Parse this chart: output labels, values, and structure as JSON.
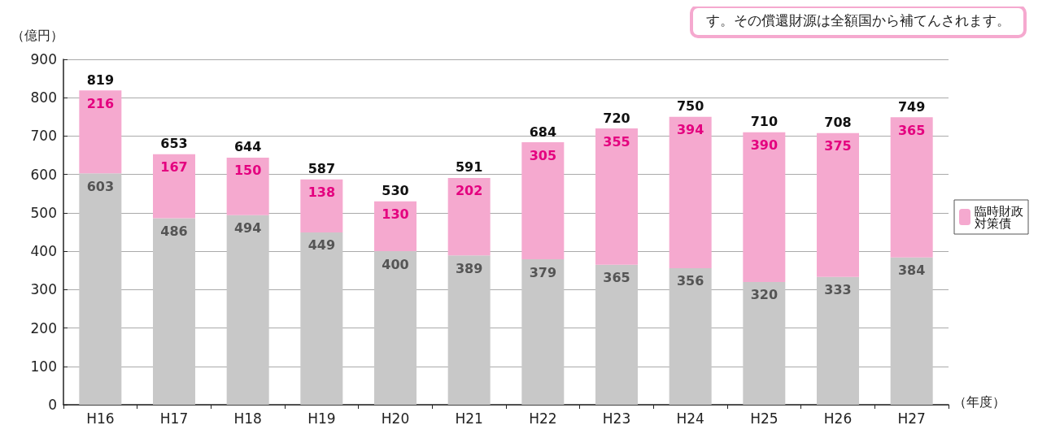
{
  "chart_data": {
    "type": "bar",
    "stacked": true,
    "ylabel": "（億円）",
    "xlabel": "（年度）",
    "annotations": [
      "す。その償還財源は全額国から補てんされます。"
    ],
    "categories": [
      "H16",
      "H17",
      "H18",
      "H19",
      "H20",
      "H21",
      "H22",
      "H23",
      "H24",
      "H25",
      "H26",
      "H27"
    ],
    "series": [
      {
        "color": "#c8c8c8",
        "values": [
          603,
          486,
          494,
          449,
          400,
          389,
          379,
          365,
          356,
          320,
          333,
          384
        ]
      },
      {
        "name": "臨時財政対策債",
        "color": "#f5a9cf",
        "values": [
          216,
          167,
          150,
          138,
          130,
          202,
          305,
          355,
          394,
          390,
          375,
          365
        ]
      }
    ],
    "totals": [
      "819",
      "653",
      "644",
      "587",
      "530",
      "591",
      "684",
      "720",
      "750",
      "710",
      "708",
      "749"
    ],
    "data_labels": true,
    "ylim": [
      0,
      900
    ],
    "yticks": [
      0,
      100,
      200,
      300,
      400,
      500,
      600,
      700,
      800,
      900
    ],
    "grid": "y",
    "legend": "right"
  }
}
